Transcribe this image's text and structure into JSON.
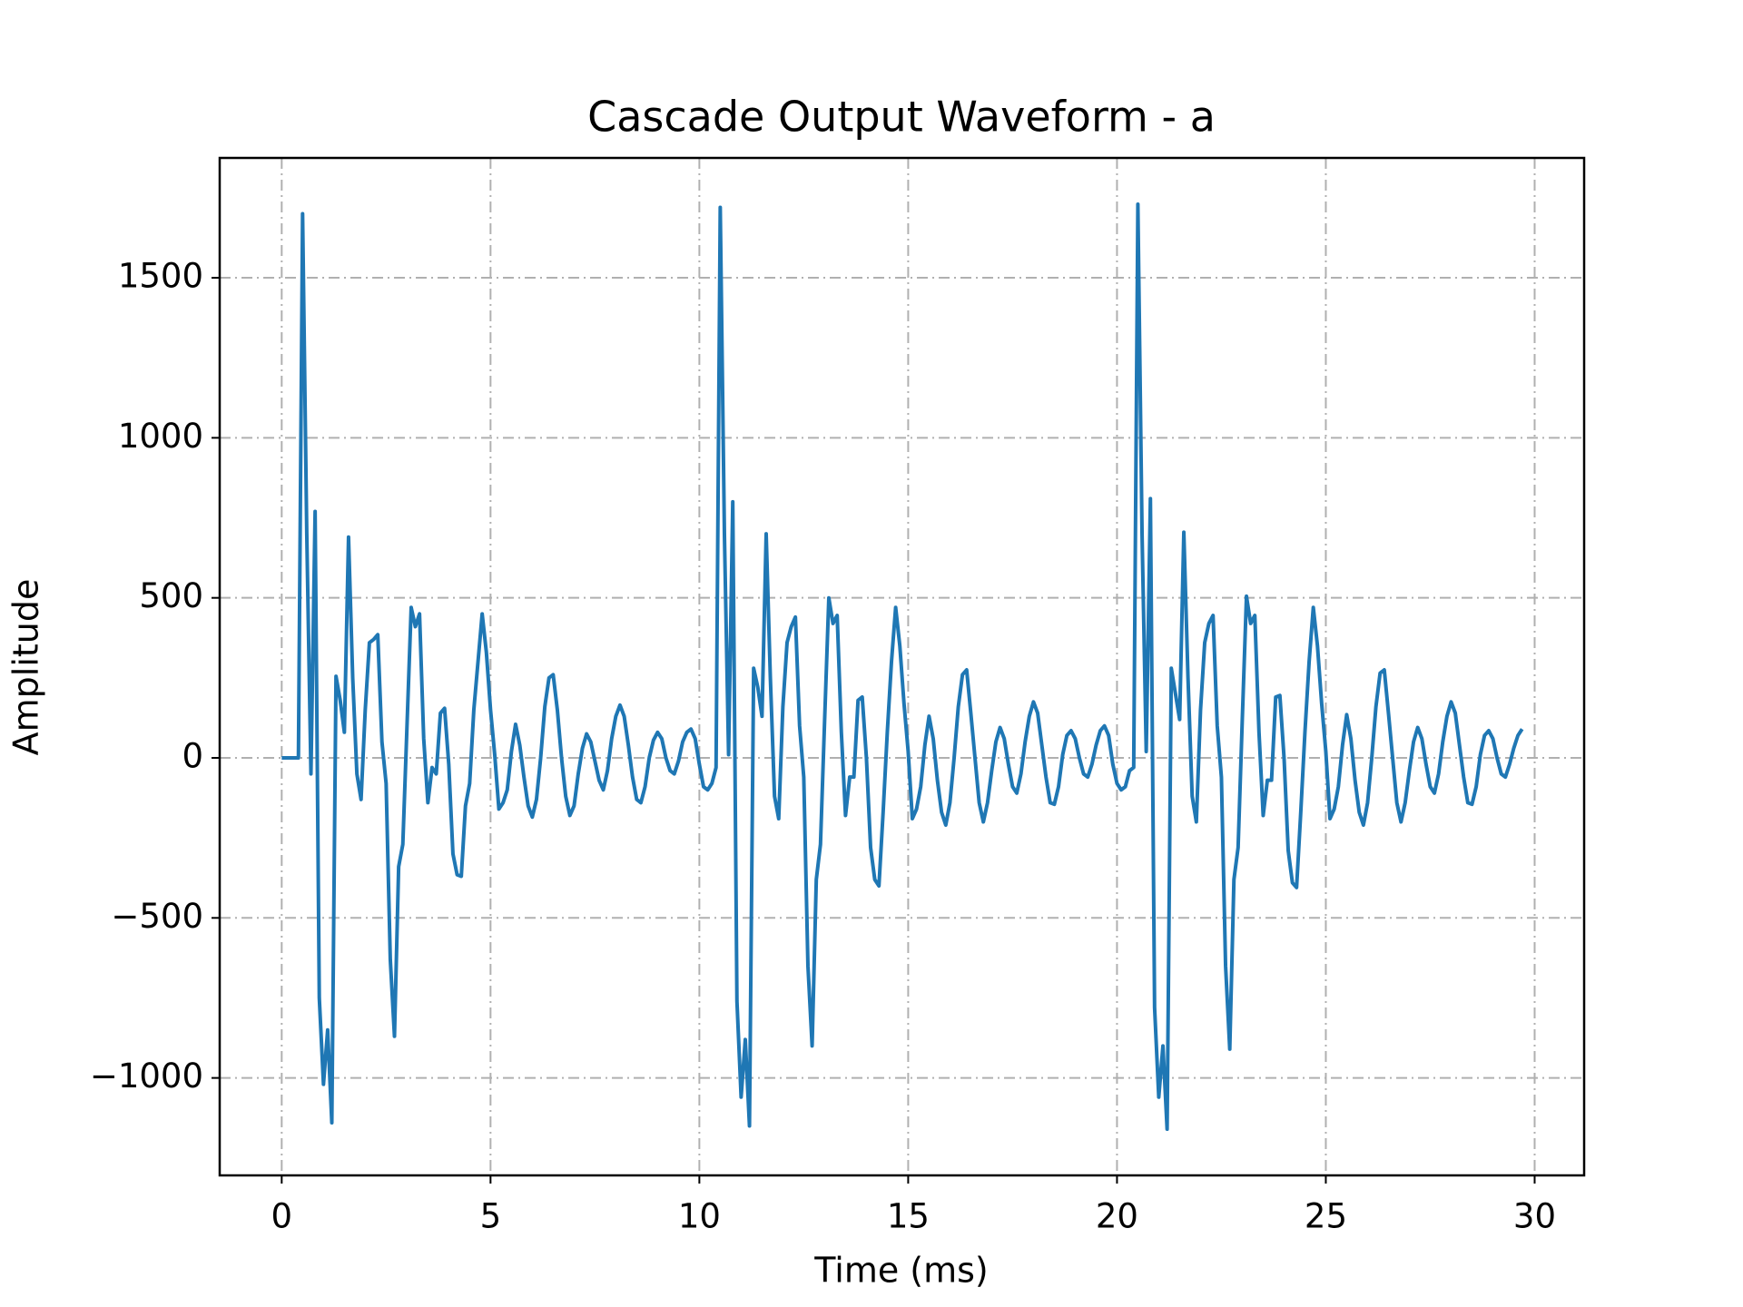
{
  "chart_data": {
    "type": "line",
    "title": "Cascade Output Waveform - a",
    "x_label": "Time (ms)",
    "y_label": "Amplitude",
    "color": "#1f77b4",
    "grid": true,
    "xlim": [
      -1.485,
      31.185
    ],
    "ylim": [
      -1304.5,
      1874.5
    ],
    "xticks": [
      0,
      5,
      10,
      15,
      20,
      25,
      30
    ],
    "yticks": [
      {
        "value": -1000,
        "label": "−1000"
      },
      {
        "value": -500,
        "label": "−500"
      },
      0,
      500,
      1000,
      1500
    ],
    "x": [
      0,
      0.1,
      0.2,
      0.3,
      0.4,
      0.5,
      0.6,
      0.7,
      0.8,
      0.9,
      1,
      1.1,
      1.2,
      1.3,
      1.4,
      1.5,
      1.6,
      1.7,
      1.8,
      1.9,
      2,
      2.1,
      2.2,
      2.3,
      2.4,
      2.5,
      2.6,
      2.7,
      2.8,
      2.9,
      3,
      3.1,
      3.2,
      3.3,
      3.4,
      3.5,
      3.6,
      3.7,
      3.8,
      3.9,
      4,
      4.1,
      4.2,
      4.3,
      4.4,
      4.5,
      4.6,
      4.7,
      4.8,
      4.9,
      5,
      5.1,
      5.2,
      5.3,
      5.4,
      5.5,
      5.6,
      5.7,
      5.8,
      5.9,
      6,
      6.1,
      6.2,
      6.3,
      6.4,
      6.5,
      6.6,
      6.7,
      6.8,
      6.9,
      7,
      7.1,
      7.2,
      7.3,
      7.4,
      7.5,
      7.6,
      7.7,
      7.8,
      7.9,
      8,
      8.1,
      8.2,
      8.3,
      8.4,
      8.5,
      8.6,
      8.7,
      8.8,
      8.9,
      9,
      9.1,
      9.2,
      9.3,
      9.4,
      9.5,
      9.6,
      9.7,
      9.8,
      9.9,
      10,
      10.1,
      10.2,
      10.3,
      10.4,
      10.5,
      10.6,
      10.7,
      10.8,
      10.9,
      11,
      11.1,
      11.2,
      11.3,
      11.4,
      11.5,
      11.6,
      11.7,
      11.8,
      11.9,
      12,
      12.1,
      12.2,
      12.3,
      12.4,
      12.5,
      12.6,
      12.7,
      12.8,
      12.9,
      13,
      13.1,
      13.2,
      13.3,
      13.4,
      13.5,
      13.6,
      13.7,
      13.8,
      13.9,
      14,
      14.1,
      14.2,
      14.3,
      14.4,
      14.5,
      14.6,
      14.7,
      14.8,
      14.9,
      15,
      15.1,
      15.2,
      15.3,
      15.4,
      15.5,
      15.6,
      15.7,
      15.8,
      15.9,
      16,
      16.1,
      16.2,
      16.3,
      16.4,
      16.5,
      16.6,
      16.7,
      16.8,
      16.9,
      17,
      17.1,
      17.2,
      17.3,
      17.4,
      17.5,
      17.6,
      17.7,
      17.8,
      17.9,
      18,
      18.1,
      18.2,
      18.3,
      18.4,
      18.5,
      18.6,
      18.7,
      18.8,
      18.9,
      19,
      19.1,
      19.2,
      19.3,
      19.4,
      19.5,
      19.6,
      19.7,
      19.8,
      19.9,
      20,
      20.1,
      20.2,
      20.3,
      20.4,
      20.5,
      20.6,
      20.7,
      20.8,
      20.9,
      21,
      21.1,
      21.2,
      21.3,
      21.4,
      21.5,
      21.6,
      21.7,
      21.8,
      21.9,
      22,
      22.1,
      22.2,
      22.3,
      22.4,
      22.5,
      22.6,
      22.7,
      22.8,
      22.9,
      23,
      23.1,
      23.2,
      23.3,
      23.4,
      23.5,
      23.6,
      23.7,
      23.8,
      23.9,
      24,
      24.1,
      24.2,
      24.3,
      24.4,
      24.5,
      24.6,
      24.7,
      24.8,
      24.9,
      25,
      25.1,
      25.2,
      25.3,
      25.4,
      25.5,
      25.6,
      25.7,
      25.8,
      25.9,
      26,
      26.1,
      26.2,
      26.3,
      26.4,
      26.5,
      26.6,
      26.7,
      26.8,
      26.9,
      27,
      27.1,
      27.2,
      27.3,
      27.4,
      27.5,
      27.6,
      27.7,
      27.8,
      27.9,
      28,
      28.1,
      28.2,
      28.3,
      28.4,
      28.5,
      28.6,
      28.7,
      28.8,
      28.9,
      29,
      29.1,
      29.2,
      29.3,
      29.4,
      29.5,
      29.6,
      29.7
    ],
    "values": [
      0,
      0,
      0,
      0,
      0,
      1700,
      700,
      -50,
      770,
      -750,
      -1020,
      -850,
      -1140,
      255,
      180,
      80,
      690,
      250,
      -50,
      -130,
      150,
      360,
      370,
      385,
      50,
      -80,
      -630,
      -870,
      -340,
      -270,
      100,
      470,
      410,
      450,
      60,
      -140,
      -30,
      -50,
      140,
      155,
      -20,
      -300,
      -365,
      -370,
      -150,
      -80,
      150,
      300,
      450,
      330,
      150,
      10,
      -160,
      -140,
      -100,
      20,
      105,
      40,
      -60,
      -150,
      -185,
      -130,
      0,
      160,
      250,
      260,
      150,
      0,
      -120,
      -180,
      -150,
      -50,
      30,
      75,
      50,
      -10,
      -70,
      -100,
      -40,
      60,
      130,
      165,
      130,
      40,
      -60,
      -130,
      -140,
      -90,
      0,
      55,
      80,
      60,
      0,
      -40,
      -50,
      -10,
      50,
      80,
      90,
      60,
      -20,
      -90,
      -100,
      -80,
      -30,
      1720,
      700,
      10,
      800,
      -760,
      -1060,
      -880,
      -1150,
      280,
      220,
      130,
      700,
      250,
      -120,
      -190,
      160,
      360,
      410,
      440,
      100,
      -60,
      -650,
      -900,
      -380,
      -270,
      120,
      500,
      420,
      445,
      80,
      -180,
      -60,
      -60,
      180,
      190,
      0,
      -280,
      -380,
      -400,
      -170,
      80,
      300,
      470,
      350,
      170,
      20,
      -190,
      -160,
      -90,
      40,
      130,
      60,
      -70,
      -170,
      -210,
      -140,
      0,
      160,
      260,
      275,
      140,
      0,
      -140,
      -200,
      -140,
      -40,
      50,
      95,
      60,
      -20,
      -90,
      -110,
      -50,
      50,
      130,
      175,
      140,
      40,
      -60,
      -140,
      -145,
      -90,
      10,
      70,
      85,
      60,
      0,
      -50,
      -60,
      -20,
      40,
      85,
      100,
      70,
      -20,
      -80,
      -100,
      -90,
      -40,
      -30,
      1730,
      700,
      20,
      810,
      -780,
      -1060,
      -900,
      -1160,
      280,
      200,
      120,
      705,
      250,
      -120,
      -200,
      150,
      360,
      420,
      445,
      100,
      -60,
      -650,
      -910,
      -380,
      -280,
      120,
      505,
      420,
      445,
      80,
      -180,
      -70,
      -70,
      190,
      195,
      0,
      -290,
      -390,
      -405,
      -170,
      80,
      300,
      470,
      350,
      170,
      20,
      -190,
      -160,
      -90,
      40,
      135,
      60,
      -70,
      -170,
      -210,
      -140,
      0,
      160,
      265,
      275,
      140,
      0,
      -140,
      -200,
      -140,
      -40,
      50,
      95,
      60,
      -20,
      -90,
      -110,
      -50,
      50,
      130,
      175,
      140,
      40,
      -60,
      -140,
      -145,
      -90,
      10,
      70,
      85,
      60,
      0,
      -50,
      -60,
      -20,
      30,
      70,
      90
    ]
  }
}
